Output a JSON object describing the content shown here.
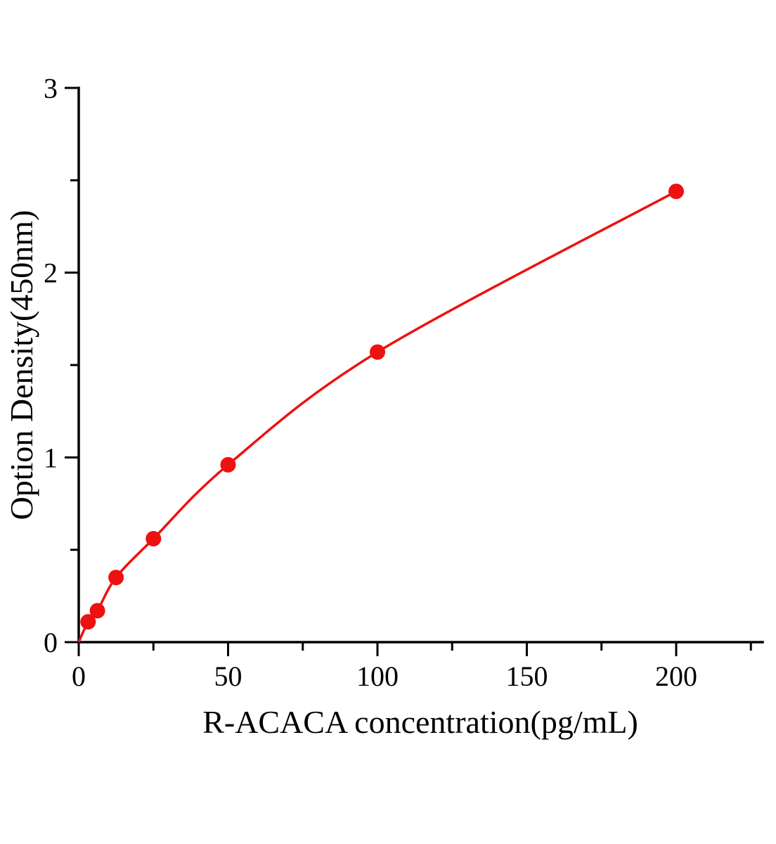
{
  "chart_data": {
    "type": "line",
    "title": "",
    "xlabel": "R-ACACA concentration(pg/mL)",
    "ylabel": "Option Density(450nm)",
    "x": [
      0,
      3.12,
      6.25,
      12.5,
      25,
      50,
      100,
      200
    ],
    "y": [
      0,
      0.11,
      0.17,
      0.35,
      0.56,
      0.96,
      1.57,
      2.44
    ],
    "xlim": [
      0,
      229
    ],
    "ylim": [
      0,
      3
    ],
    "x_major_ticks": [
      0,
      50,
      100,
      150,
      200
    ],
    "x_minor_step": 25,
    "y_major_ticks": [
      0,
      1,
      2,
      3
    ],
    "y_minor_step": 0.5,
    "grid": false,
    "legend": null,
    "line_color": "#ee1111",
    "axis_color": "#000000",
    "marker": "circle"
  }
}
